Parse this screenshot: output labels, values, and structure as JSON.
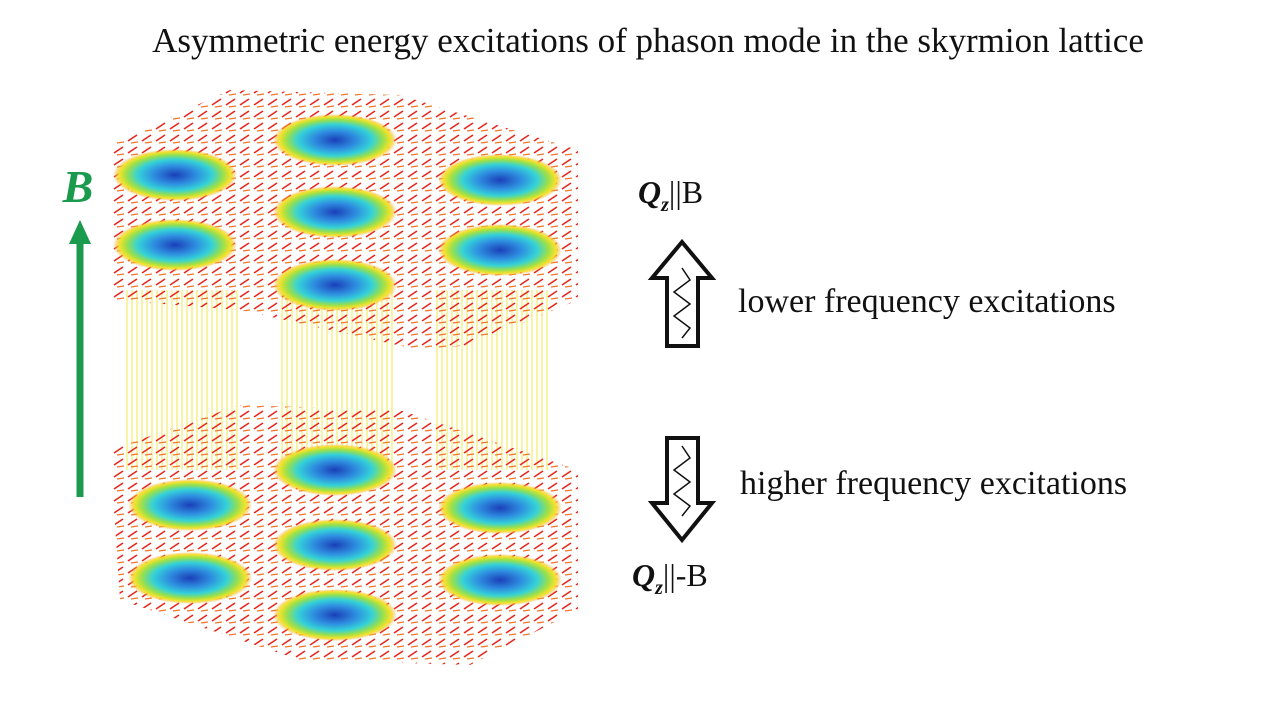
{
  "slide": {
    "title": "Asymmetric energy excitations of phason mode in the skyrmion lattice",
    "field_label": "B",
    "upper_label": {
      "symbol": "Q",
      "subscript": "z",
      "relation": "||B"
    },
    "upper_caption": "lower frequency excitations",
    "lower_caption": "higher frequency excitations",
    "lower_label": {
      "symbol": "Q",
      "subscript": "z",
      "relation": "||-B"
    }
  }
}
